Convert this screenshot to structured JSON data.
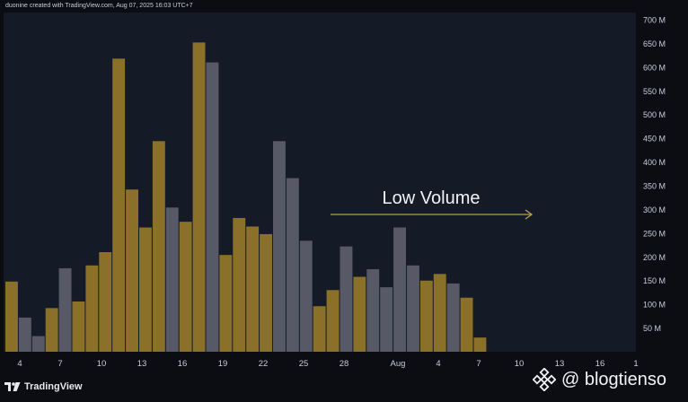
{
  "header": {
    "credit": "duonine created with TradingView.com, Aug 07, 2025 16:03 UTC+7"
  },
  "branding": {
    "logo_text": "TradingView",
    "logo_icon": "tradingview-logo-icon"
  },
  "watermark": {
    "text": "@ blogtienso",
    "icon": "binance-logo-icon"
  },
  "colors": {
    "background": "#0b0d12",
    "plot_background": "#141a26",
    "up_bar": "#8a7029",
    "down_bar": "#575a66",
    "annotation": "#b8a046",
    "axis_text": "#c9cdd6"
  },
  "chart_data": {
    "type": "bar",
    "title": "",
    "xlabel": "",
    "ylabel": "",
    "ylim": [
      0,
      720
    ],
    "y_unit": "M",
    "y_ticks": [
      "50 M",
      "100 M",
      "150 M",
      "200 M",
      "250 M",
      "300 M",
      "350 M",
      "400 M",
      "450 M",
      "500 M",
      "550 M",
      "600 M",
      "650 M",
      "700 M"
    ],
    "x_ticks": [
      "4",
      "7",
      "10",
      "13",
      "16",
      "19",
      "22",
      "25",
      "28",
      "Aug",
      "4",
      "7",
      "10",
      "13",
      "16",
      "1"
    ],
    "bars": [
      {
        "value": 148,
        "color": "up"
      },
      {
        "value": 72,
        "color": "down"
      },
      {
        "value": 33,
        "color": "down"
      },
      {
        "value": 92,
        "color": "up"
      },
      {
        "value": 176,
        "color": "down"
      },
      {
        "value": 106,
        "color": "up"
      },
      {
        "value": 182,
        "color": "up"
      },
      {
        "value": 210,
        "color": "up"
      },
      {
        "value": 618,
        "color": "up"
      },
      {
        "value": 342,
        "color": "up"
      },
      {
        "value": 262,
        "color": "up"
      },
      {
        "value": 444,
        "color": "up"
      },
      {
        "value": 304,
        "color": "down"
      },
      {
        "value": 274,
        "color": "up"
      },
      {
        "value": 652,
        "color": "up"
      },
      {
        "value": 610,
        "color": "down"
      },
      {
        "value": 204,
        "color": "up"
      },
      {
        "value": 282,
        "color": "up"
      },
      {
        "value": 264,
        "color": "up"
      },
      {
        "value": 248,
        "color": "up"
      },
      {
        "value": 444,
        "color": "down"
      },
      {
        "value": 366,
        "color": "down"
      },
      {
        "value": 234,
        "color": "down"
      },
      {
        "value": 96,
        "color": "up"
      },
      {
        "value": 130,
        "color": "up"
      },
      {
        "value": 222,
        "color": "down"
      },
      {
        "value": 158,
        "color": "up"
      },
      {
        "value": 174,
        "color": "down"
      },
      {
        "value": 136,
        "color": "down"
      },
      {
        "value": 262,
        "color": "down"
      },
      {
        "value": 182,
        "color": "down"
      },
      {
        "value": 150,
        "color": "up"
      },
      {
        "value": 164,
        "color": "up"
      },
      {
        "value": 144,
        "color": "down"
      },
      {
        "value": 114,
        "color": "up"
      },
      {
        "value": 30,
        "color": "up"
      }
    ],
    "annotations": [
      {
        "text": "Low Volume",
        "type": "arrow-right",
        "color": "#b8a046"
      }
    ],
    "grid": false,
    "legend": "none"
  }
}
